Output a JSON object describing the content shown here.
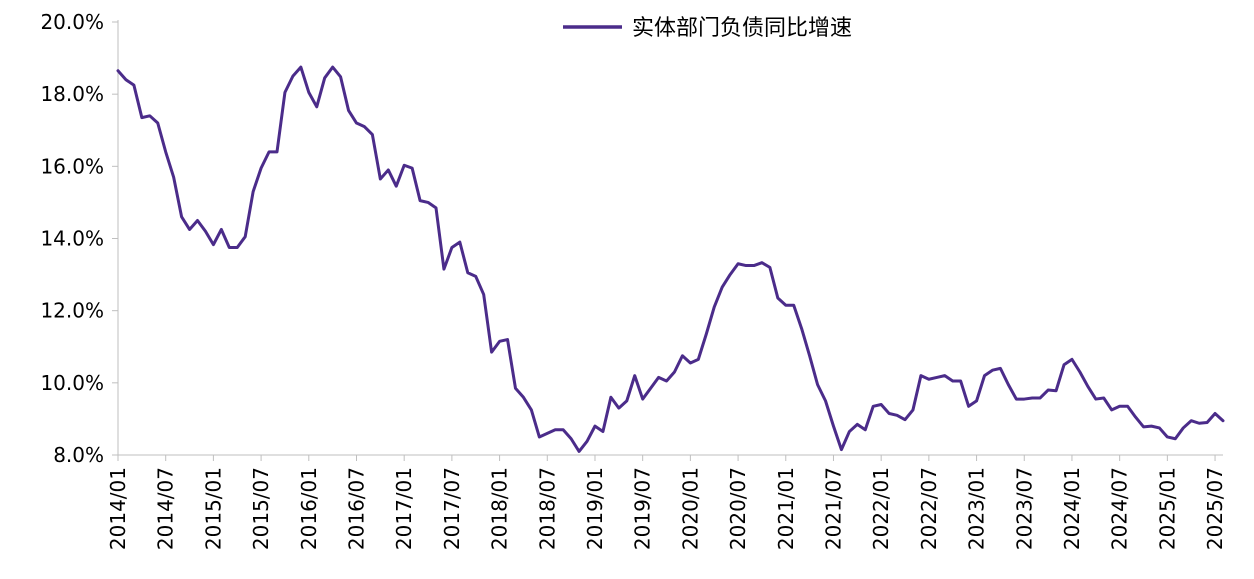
{
  "chart_data": {
    "type": "line",
    "title": "",
    "xlabel": "",
    "ylabel": "",
    "ylim": [
      0.08,
      0.2
    ],
    "yticks": [
      "8.0%",
      "10.0%",
      "12.0%",
      "14.0%",
      "16.0%",
      "18.0%",
      "20.0%"
    ],
    "xticks": [
      "2014/01",
      "2014/07",
      "2015/01",
      "2015/07",
      "2016/01",
      "2016/07",
      "2017/01",
      "2017/07",
      "2018/01",
      "2018/07",
      "2019/01",
      "2019/07",
      "2020/01",
      "2020/07",
      "2021/01",
      "2021/07",
      "2022/01",
      "2022/07",
      "2023/01",
      "2023/07",
      "2024/01",
      "2024/07",
      "2025/01",
      "2025/07"
    ],
    "legend_position": "top-center",
    "grid": false,
    "series": [
      {
        "name": "实体部门负债同比增速",
        "color": "#4B2C8A",
        "x": [
          "2014/01",
          "2014/02",
          "2014/03",
          "2014/04",
          "2014/05",
          "2014/06",
          "2014/07",
          "2014/08",
          "2014/09",
          "2014/10",
          "2014/11",
          "2014/12",
          "2015/01",
          "2015/02",
          "2015/03",
          "2015/04",
          "2015/05",
          "2015/06",
          "2015/07",
          "2015/08",
          "2015/09",
          "2015/10",
          "2015/11",
          "2015/12",
          "2016/01",
          "2016/02",
          "2016/03",
          "2016/04",
          "2016/05",
          "2016/06",
          "2016/07",
          "2016/08",
          "2016/09",
          "2016/10",
          "2016/11",
          "2016/12",
          "2017/01",
          "2017/02",
          "2017/03",
          "2017/04",
          "2017/05",
          "2017/06",
          "2017/07",
          "2017/08",
          "2017/09",
          "2017/10",
          "2017/11",
          "2017/12",
          "2018/01",
          "2018/02",
          "2018/03",
          "2018/04",
          "2018/05",
          "2018/06",
          "2018/07",
          "2018/08",
          "2018/09",
          "2018/10",
          "2018/11",
          "2018/12",
          "2019/01",
          "2019/02",
          "2019/03",
          "2019/04",
          "2019/05",
          "2019/06",
          "2019/07",
          "2019/08",
          "2019/09",
          "2019/10",
          "2019/11",
          "2019/12",
          "2020/01",
          "2020/02",
          "2020/03",
          "2020/04",
          "2020/05",
          "2020/06",
          "2020/07",
          "2020/08",
          "2020/09",
          "2020/10",
          "2020/11",
          "2020/12",
          "2021/01",
          "2021/02",
          "2021/03",
          "2021/04",
          "2021/05",
          "2021/06",
          "2021/07",
          "2021/08",
          "2021/09",
          "2021/10",
          "2021/11",
          "2021/12",
          "2022/01",
          "2022/02",
          "2022/03",
          "2022/04",
          "2022/05",
          "2022/06",
          "2022/07",
          "2022/08",
          "2022/09",
          "2022/10",
          "2022/11",
          "2022/12",
          "2023/01",
          "2023/02",
          "2023/03",
          "2023/04",
          "2023/05",
          "2023/06",
          "2023/07",
          "2023/08",
          "2023/09",
          "2023/10",
          "2023/11",
          "2023/12",
          "2024/01",
          "2024/02",
          "2024/03",
          "2024/04",
          "2024/05",
          "2024/06",
          "2024/07",
          "2024/08",
          "2024/09",
          "2024/10",
          "2024/11",
          "2024/12",
          "2025/01",
          "2025/02",
          "2025/03",
          "2025/04",
          "2025/05",
          "2025/06",
          "2025/07",
          "2025/08"
        ],
        "values": [
          0.1865,
          0.184,
          0.1825,
          0.1735,
          0.174,
          0.172,
          0.164,
          0.157,
          0.146,
          0.1425,
          0.145,
          0.142,
          0.1383,
          0.1425,
          0.1375,
          0.1375,
          0.1405,
          0.153,
          0.1595,
          0.164,
          0.164,
          0.1805,
          0.185,
          0.1875,
          0.1805,
          0.1765,
          0.1845,
          0.1875,
          0.1848,
          0.1755,
          0.172,
          0.171,
          0.1688,
          0.1565,
          0.159,
          0.1545,
          0.1603,
          0.1595,
          0.1505,
          0.15,
          0.1485,
          0.1315,
          0.1375,
          0.139,
          0.1305,
          0.1295,
          0.1245,
          0.1085,
          0.1115,
          0.112,
          0.0985,
          0.096,
          0.0925,
          0.085,
          0.086,
          0.087,
          0.087,
          0.0845,
          0.081,
          0.0838,
          0.088,
          0.0865,
          0.096,
          0.093,
          0.095,
          0.102,
          0.0955,
          0.0985,
          0.1015,
          0.1005,
          0.103,
          0.1075,
          0.1055,
          0.1065,
          0.1135,
          0.121,
          0.1265,
          0.13,
          0.133,
          0.1325,
          0.1325,
          0.1333,
          0.132,
          0.1235,
          0.1215,
          0.1215,
          0.115,
          0.1075,
          0.0995,
          0.095,
          0.088,
          0.0815,
          0.0865,
          0.0885,
          0.087,
          0.0935,
          0.094,
          0.0915,
          0.091,
          0.0898,
          0.0925,
          0.102,
          0.101,
          0.1015,
          0.102,
          0.1005,
          0.1005,
          0.0935,
          0.095,
          0.102,
          0.1035,
          0.104,
          0.0995,
          0.0955,
          0.0955,
          0.0958,
          0.0958,
          0.098,
          0.0978,
          0.105,
          0.1065,
          0.103,
          0.099,
          0.0955,
          0.0958,
          0.0925,
          0.0935,
          0.0935,
          0.0905,
          0.0878,
          0.088,
          0.0875,
          0.085,
          0.0845,
          0.0875,
          0.0895,
          0.0888,
          0.089,
          0.0915,
          0.0895
        ]
      }
    ]
  }
}
